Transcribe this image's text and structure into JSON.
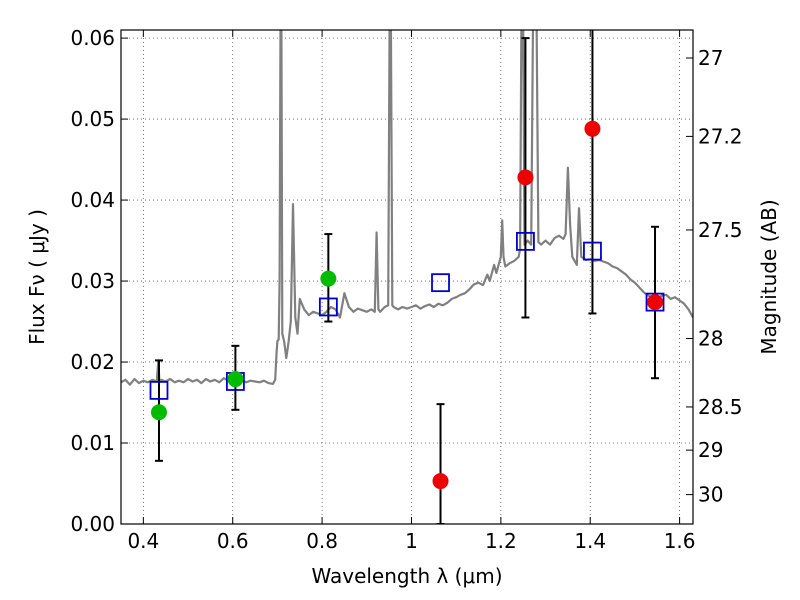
{
  "chart_data": {
    "type": "scatter",
    "title": "",
    "xlabel": "Wavelength  λ (μm)",
    "ylabel": "Flux  Fν  ( μJy )",
    "y2label": "Magnitude (AB)",
    "xlim": [
      0.35,
      1.63
    ],
    "ylim": [
      0.0,
      0.061
    ],
    "grid": true,
    "x_ticks": [
      "0.4",
      "0.6",
      "0.8",
      "1",
      "1.2",
      "1.4",
      "1.6"
    ],
    "x_tick_values": [
      0.4,
      0.6,
      0.8,
      1.0,
      1.2,
      1.4,
      1.6
    ],
    "y_ticks": [
      "0.00",
      "0.01",
      "0.02",
      "0.03",
      "0.04",
      "0.05",
      "0.06"
    ],
    "y_tick_values": [
      0.0,
      0.01,
      0.02,
      0.03,
      0.04,
      0.05,
      0.06
    ],
    "mag_ticks": [
      "27",
      "27.2",
      "27.5",
      "28",
      "28.5",
      "29",
      "30"
    ],
    "mag_tick_values": [
      27.0,
      27.2,
      27.5,
      28.0,
      28.5,
      29.0,
      30.0
    ],
    "colors": {
      "spectrum": "#808080",
      "model_box": "#0000cc",
      "detection": "#00bb00",
      "nondetection": "#ee0000",
      "errorbar": "#000000",
      "grid": "#555555"
    },
    "model_photometry": [
      {
        "x": 0.435,
        "y": 0.0165
      },
      {
        "x": 0.606,
        "y": 0.0176
      },
      {
        "x": 0.814,
        "y": 0.0268
      },
      {
        "x": 1.065,
        "y": 0.0298
      },
      {
        "x": 1.255,
        "y": 0.0349
      },
      {
        "x": 1.405,
        "y": 0.0337
      },
      {
        "x": 1.545,
        "y": 0.0274
      }
    ],
    "observed_detections": [
      {
        "x": 0.435,
        "y": 0.0138,
        "err_lo": 0.0078,
        "err_hi": 0.0202
      },
      {
        "x": 0.606,
        "y": 0.0179,
        "err_lo": 0.0141,
        "err_hi": 0.022
      },
      {
        "x": 0.814,
        "y": 0.0303,
        "err_lo": 0.025,
        "err_hi": 0.0358
      }
    ],
    "observed_low_significance": [
      {
        "x": 1.065,
        "y": 0.0053,
        "err_lo": 0.0,
        "err_hi": 0.0148
      },
      {
        "x": 1.255,
        "y": 0.0428,
        "err_lo": 0.0255,
        "err_hi": 0.06
      },
      {
        "x": 1.405,
        "y": 0.0488,
        "err_lo": 0.026,
        "err_hi": 0.062
      },
      {
        "x": 1.545,
        "y": 0.0274,
        "err_lo": 0.018,
        "err_hi": 0.0367
      }
    ],
    "spectrum": [
      [
        0.35,
        0.0175
      ],
      [
        0.36,
        0.0178
      ],
      [
        0.37,
        0.0172
      ],
      [
        0.38,
        0.0179
      ],
      [
        0.39,
        0.0174
      ],
      [
        0.4,
        0.0177
      ],
      [
        0.41,
        0.0175
      ],
      [
        0.42,
        0.0178
      ],
      [
        0.43,
        0.0176
      ],
      [
        0.4335,
        0.0202
      ],
      [
        0.436,
        0.0176
      ],
      [
        0.44,
        0.0178
      ],
      [
        0.45,
        0.0176
      ],
      [
        0.46,
        0.0179
      ],
      [
        0.47,
        0.0175
      ],
      [
        0.48,
        0.0177
      ],
      [
        0.49,
        0.0175
      ],
      [
        0.5,
        0.0179
      ],
      [
        0.51,
        0.0176
      ],
      [
        0.52,
        0.0178
      ],
      [
        0.53,
        0.0174
      ],
      [
        0.54,
        0.0179
      ],
      [
        0.55,
        0.0176
      ],
      [
        0.56,
        0.0178
      ],
      [
        0.57,
        0.0175
      ],
      [
        0.58,
        0.018
      ],
      [
        0.59,
        0.0177
      ],
      [
        0.6,
        0.0179
      ],
      [
        0.61,
        0.0176
      ],
      [
        0.62,
        0.0178
      ],
      [
        0.63,
        0.0175
      ],
      [
        0.64,
        0.0177
      ],
      [
        0.65,
        0.0176
      ],
      [
        0.66,
        0.0175
      ],
      [
        0.67,
        0.0177
      ],
      [
        0.68,
        0.0174
      ],
      [
        0.69,
        0.0173
      ],
      [
        0.695,
        0.0178
      ],
      [
        0.698,
        0.021
      ],
      [
        0.7,
        0.0226
      ],
      [
        0.703,
        0.0228
      ],
      [
        0.705,
        0.03
      ],
      [
        0.707,
        0.062
      ],
      [
        0.709,
        0.062
      ],
      [
        0.711,
        0.0235
      ],
      [
        0.715,
        0.0226
      ],
      [
        0.72,
        0.0205
      ],
      [
        0.725,
        0.0225
      ],
      [
        0.73,
        0.025
      ],
      [
        0.735,
        0.0395
      ],
      [
        0.74,
        0.0255
      ],
      [
        0.745,
        0.0235
      ],
      [
        0.75,
        0.0278
      ],
      [
        0.76,
        0.0265
      ],
      [
        0.77,
        0.0258
      ],
      [
        0.78,
        0.0262
      ],
      [
        0.79,
        0.026
      ],
      [
        0.8,
        0.0258
      ],
      [
        0.81,
        0.0262
      ],
      [
        0.82,
        0.0268
      ],
      [
        0.83,
        0.0265
      ],
      [
        0.84,
        0.0255
      ],
      [
        0.85,
        0.0285
      ],
      [
        0.86,
        0.0268
      ],
      [
        0.87,
        0.0262
      ],
      [
        0.88,
        0.0266
      ],
      [
        0.89,
        0.0264
      ],
      [
        0.9,
        0.0262
      ],
      [
        0.91,
        0.0265
      ],
      [
        0.918,
        0.0262
      ],
      [
        0.922,
        0.036
      ],
      [
        0.926,
        0.0265
      ],
      [
        0.93,
        0.0262
      ],
      [
        0.94,
        0.0268
      ],
      [
        0.948,
        0.027
      ],
      [
        0.951,
        0.062
      ],
      [
        0.954,
        0.062
      ],
      [
        0.957,
        0.027
      ],
      [
        0.96,
        0.0268
      ],
      [
        0.97,
        0.0265
      ],
      [
        0.98,
        0.0268
      ],
      [
        0.99,
        0.0266
      ],
      [
        1.0,
        0.0268
      ],
      [
        1.01,
        0.027
      ],
      [
        1.02,
        0.0266
      ],
      [
        1.03,
        0.0269
      ],
      [
        1.04,
        0.0271
      ],
      [
        1.05,
        0.0268
      ],
      [
        1.06,
        0.0272
      ],
      [
        1.07,
        0.027
      ],
      [
        1.08,
        0.0273
      ],
      [
        1.09,
        0.0278
      ],
      [
        1.1,
        0.028
      ],
      [
        1.11,
        0.0283
      ],
      [
        1.12,
        0.0285
      ],
      [
        1.13,
        0.029
      ],
      [
        1.14,
        0.0296
      ],
      [
        1.15,
        0.0298
      ],
      [
        1.16,
        0.0295
      ],
      [
        1.17,
        0.0308
      ],
      [
        1.175,
        0.03
      ],
      [
        1.18,
        0.031
      ],
      [
        1.185,
        0.032
      ],
      [
        1.19,
        0.031
      ],
      [
        1.2,
        0.033
      ],
      [
        1.203,
        0.0375
      ],
      [
        1.206,
        0.033
      ],
      [
        1.21,
        0.0318
      ],
      [
        1.22,
        0.0322
      ],
      [
        1.23,
        0.0325
      ],
      [
        1.24,
        0.033
      ],
      [
        1.243,
        0.034
      ],
      [
        1.246,
        0.062
      ],
      [
        1.25,
        0.062
      ],
      [
        1.253,
        0.0345
      ],
      [
        1.26,
        0.035
      ],
      [
        1.268,
        0.0345
      ],
      [
        1.272,
        0.062
      ],
      [
        1.28,
        0.062
      ],
      [
        1.284,
        0.0348
      ],
      [
        1.29,
        0.0345
      ],
      [
        1.3,
        0.035
      ],
      [
        1.31,
        0.0345
      ],
      [
        1.32,
        0.0353
      ],
      [
        1.33,
        0.0356
      ],
      [
        1.34,
        0.0352
      ],
      [
        1.345,
        0.0358
      ],
      [
        1.35,
        0.044
      ],
      [
        1.355,
        0.037
      ],
      [
        1.36,
        0.033
      ],
      [
        1.37,
        0.032
      ],
      [
        1.375,
        0.039
      ],
      [
        1.38,
        0.033
      ],
      [
        1.39,
        0.0326
      ],
      [
        1.4,
        0.0327
      ],
      [
        1.41,
        0.0325
      ],
      [
        1.42,
        0.0326
      ],
      [
        1.43,
        0.0324
      ],
      [
        1.44,
        0.0322
      ],
      [
        1.45,
        0.0318
      ],
      [
        1.46,
        0.0316
      ],
      [
        1.47,
        0.0312
      ],
      [
        1.48,
        0.0308
      ],
      [
        1.49,
        0.0302
      ],
      [
        1.5,
        0.0298
      ],
      [
        1.51,
        0.0292
      ],
      [
        1.52,
        0.0286
      ],
      [
        1.53,
        0.0282
      ],
      [
        1.54,
        0.028
      ],
      [
        1.55,
        0.0278
      ],
      [
        1.56,
        0.0282
      ],
      [
        1.57,
        0.0283
      ],
      [
        1.58,
        0.0278
      ],
      [
        1.59,
        0.028
      ],
      [
        1.6,
        0.0276
      ],
      [
        1.61,
        0.0272
      ],
      [
        1.62,
        0.0265
      ],
      [
        1.63,
        0.0255
      ]
    ]
  }
}
